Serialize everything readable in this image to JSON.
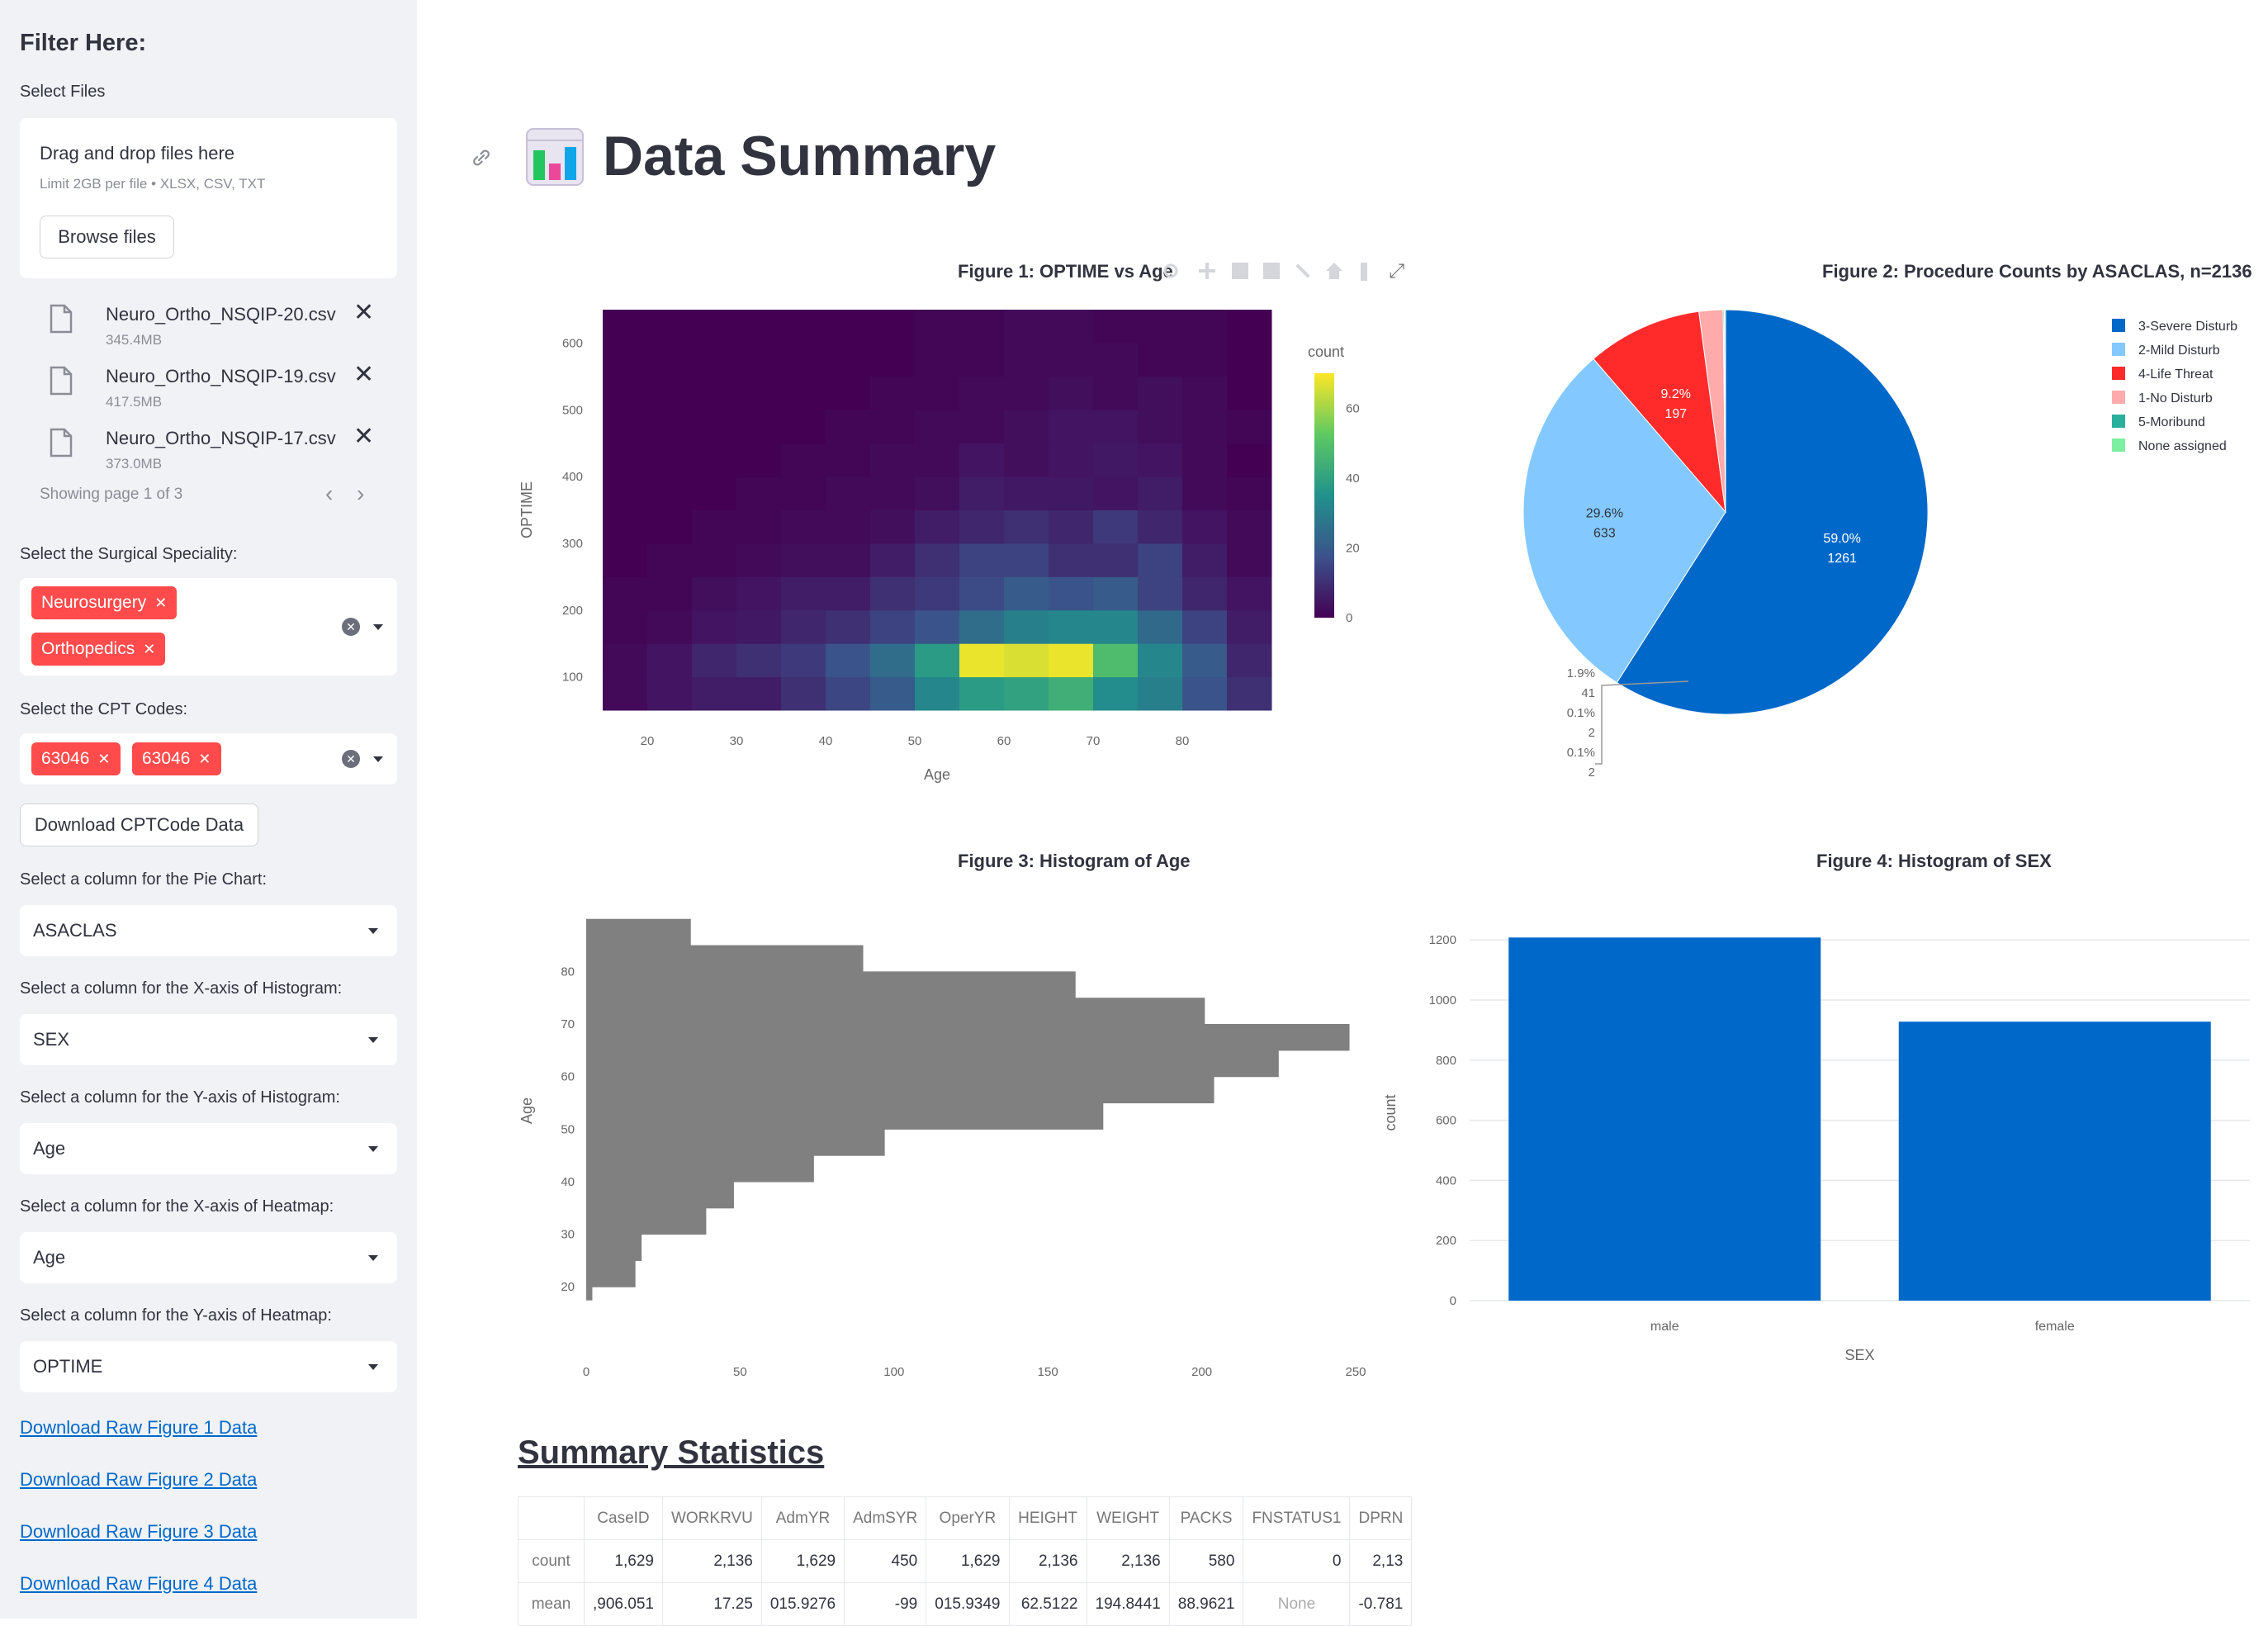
{
  "sidebar": {
    "title": "Filter Here:",
    "select_files_label": "Select Files",
    "dropzone_title": "Drag and drop files here",
    "dropzone_limit": "Limit 2GB per file • XLSX, CSV, TXT",
    "browse_label": "Browse files",
    "files": [
      {
        "name": "Neuro_Ortho_NSQIP-20.csv",
        "size": "345.4MB"
      },
      {
        "name": "Neuro_Ortho_NSQIP-19.csv",
        "size": "417.5MB"
      },
      {
        "name": "Neuro_Ortho_NSQIP-17.csv",
        "size": "373.0MB"
      }
    ],
    "page_text": "Showing page 1 of 3",
    "specialty_label": "Select the Surgical Speciality:",
    "specialty_tags": [
      "Neurosurgery",
      "Orthopedics"
    ],
    "cpt_label": "Select the CPT Codes:",
    "cpt_tags": [
      "63046",
      "63046"
    ],
    "download_cpt": "Download CPTCode Data",
    "pie_col_label": "Select a column for the Pie Chart:",
    "pie_col": "ASACLAS",
    "histx_label": "Select a column for the X-axis of Histogram:",
    "histx": "SEX",
    "histy_label": "Select a column for the Y-axis of Histogram:",
    "histy": "Age",
    "heatx_label": "Select a column for the X-axis of Heatmap:",
    "heatx": "Age",
    "heaty_label": "Select a column for the Y-axis of Heatmap:",
    "heaty": "OPTIME",
    "links": [
      "Download Raw Figure 1 Data",
      "Download Raw Figure 2 Data",
      "Download Raw Figure 3 Data",
      "Download Raw Figure 4 Data"
    ]
  },
  "main": {
    "title": "Data Summary",
    "stats_title": "Summary Statistics"
  },
  "colors": {
    "accent": "#ff4b4b",
    "blue": "#0068c9",
    "sidebar": "#f0f2f6"
  },
  "chart_data": [
    {
      "type": "heatmap",
      "title": "Figure 1: OPTIME vs Age",
      "xlabel": "Age",
      "ylabel": "OPTIME",
      "colorbar_title": "count",
      "colorscale": "viridis",
      "zrange": [
        0,
        70
      ],
      "x_ticks": [
        20,
        30,
        40,
        50,
        60,
        70,
        80
      ],
      "y_ticks": [
        100,
        200,
        300,
        400,
        500,
        600
      ],
      "colorbar_ticks": [
        0,
        20,
        40,
        60
      ],
      "x_bins": [
        15,
        20,
        25,
        30,
        35,
        40,
        45,
        50,
        55,
        60,
        65,
        70,
        75,
        80,
        85,
        90
      ],
      "y_bins": [
        50,
        100,
        150,
        200,
        250,
        300,
        350,
        400,
        450,
        500,
        550,
        600,
        650
      ],
      "z": [
        [
          2,
          4,
          6,
          6,
          10,
          15,
          20,
          32,
          38,
          40,
          44,
          34,
          30,
          18,
          10,
          4
        ],
        [
          2,
          4,
          8,
          10,
          12,
          18,
          25,
          38,
          68,
          66,
          68,
          48,
          32,
          20,
          8,
          4
        ],
        [
          1,
          2,
          4,
          5,
          8,
          10,
          14,
          18,
          25,
          30,
          32,
          32,
          24,
          14,
          6,
          2
        ],
        [
          1,
          1,
          3,
          4,
          6,
          6,
          10,
          12,
          16,
          20,
          18,
          20,
          14,
          8,
          4,
          1
        ],
        [
          0,
          1,
          1,
          2,
          3,
          3,
          6,
          10,
          14,
          14,
          10,
          10,
          14,
          6,
          2,
          1
        ],
        [
          0,
          0,
          1,
          1,
          2,
          2,
          3,
          6,
          8,
          10,
          8,
          12,
          8,
          4,
          2,
          0
        ],
        [
          0,
          0,
          0,
          1,
          1,
          2,
          2,
          3,
          6,
          5,
          5,
          4,
          6,
          2,
          1,
          0
        ],
        [
          0,
          0,
          0,
          0,
          1,
          1,
          2,
          2,
          4,
          3,
          4,
          5,
          4,
          2,
          0,
          0
        ],
        [
          0,
          0,
          0,
          0,
          0,
          1,
          1,
          2,
          2,
          3,
          4,
          4,
          3,
          2,
          1,
          0
        ],
        [
          0,
          0,
          0,
          0,
          0,
          0,
          1,
          1,
          2,
          2,
          3,
          2,
          3,
          2,
          0,
          0
        ],
        [
          0,
          0,
          0,
          0,
          0,
          0,
          0,
          1,
          1,
          2,
          2,
          2,
          1,
          1,
          0,
          0
        ],
        [
          0,
          0,
          0,
          0,
          0,
          0,
          0,
          1,
          1,
          2,
          2,
          1,
          1,
          1,
          0,
          0
        ]
      ]
    },
    {
      "type": "pie",
      "title": "Figure 2: Procedure Counts by ASACLAS, n=2136",
      "slices": [
        {
          "label": "3-Severe Disturb",
          "value": 1261,
          "percent": "59.0%",
          "color": "#0068c9"
        },
        {
          "label": "2-Mild Disturb",
          "value": 633,
          "percent": "29.6%",
          "color": "#83c9ff"
        },
        {
          "label": "4-Life Threat",
          "value": 197,
          "percent": "9.2%",
          "color": "#ff2b2b"
        },
        {
          "label": "1-No Disturb",
          "value": 41,
          "percent": "1.9%",
          "color": "#ffabab"
        },
        {
          "label": "5-Moribund",
          "value": 2,
          "percent": "0.1%",
          "color": "#29b09d"
        },
        {
          "label": "None assigned",
          "value": 2,
          "percent": "0.1%",
          "color": "#7defa1"
        }
      ]
    },
    {
      "type": "bar",
      "orientation": "horizontal",
      "title": "Figure 3: Histogram of Age",
      "xlabel": "count",
      "ylabel": "Age",
      "xlim": [
        0,
        250
      ],
      "x_ticks": [
        0,
        50,
        100,
        150,
        200,
        250
      ],
      "y_ticks": [
        20,
        30,
        40,
        50,
        60,
        70,
        80
      ],
      "bins": [
        {
          "y0": 17.5,
          "y1": 20,
          "count": 2
        },
        {
          "y0": 20,
          "y1": 25,
          "count": 16
        },
        {
          "y0": 25,
          "y1": 30,
          "count": 18
        },
        {
          "y0": 30,
          "y1": 35,
          "count": 39
        },
        {
          "y0": 35,
          "y1": 40,
          "count": 48
        },
        {
          "y0": 40,
          "y1": 45,
          "count": 74
        },
        {
          "y0": 45,
          "y1": 50,
          "count": 97
        },
        {
          "y0": 50,
          "y1": 55,
          "count": 168
        },
        {
          "y0": 55,
          "y1": 60,
          "count": 204
        },
        {
          "y0": 60,
          "y1": 65,
          "count": 225
        },
        {
          "y0": 65,
          "y1": 70,
          "count": 248
        },
        {
          "y0": 70,
          "y1": 75,
          "count": 201
        },
        {
          "y0": 75,
          "y1": 80,
          "count": 159
        },
        {
          "y0": 80,
          "y1": 85,
          "count": 90
        },
        {
          "y0": 85,
          "y1": 90,
          "count": 34
        }
      ]
    },
    {
      "type": "bar",
      "title": "Figure 4: Histogram of SEX",
      "xlabel": "SEX",
      "ylabel": "count",
      "categories": [
        "male",
        "female"
      ],
      "values": [
        1208,
        928
      ],
      "ylim": [
        0,
        1250
      ],
      "y_ticks": [
        0,
        200,
        400,
        600,
        800,
        1000,
        1200
      ]
    }
  ],
  "stats_table": {
    "columns": [
      "",
      "CaseID",
      "WORKRVU",
      "AdmYR",
      "AdmSYR",
      "OperYR",
      "HEIGHT",
      "WEIGHT",
      "PACKS",
      "FNSTATUS1",
      "DPRN"
    ],
    "rows": [
      [
        "count",
        "1,629",
        "2,136",
        "1,629",
        "450",
        "1,629",
        "2,136",
        "2,136",
        "580",
        "0",
        "2,13"
      ],
      [
        "mean",
        ",906.051",
        "17.25",
        "015.9276",
        "-99",
        "015.9349",
        "62.5122",
        "194.8441",
        "88.9621",
        "None",
        "-0.781"
      ]
    ]
  }
}
